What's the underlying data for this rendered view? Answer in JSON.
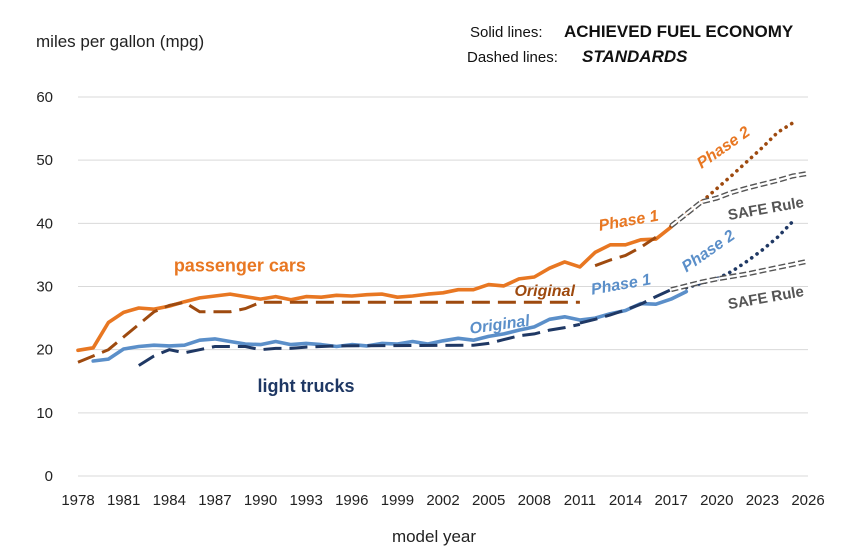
{
  "chart_data": {
    "type": "line",
    "ylabel": "miles per gallon (mpg)",
    "xlabel": "model year",
    "legend": {
      "solid_key": "Solid lines:",
      "solid_value": "ACHIEVED FUEL ECONOMY",
      "dashed_key": "Dashed lines:",
      "dashed_value": "STANDARDS"
    },
    "xlim": [
      1978,
      2026
    ],
    "ylim": [
      0,
      60
    ],
    "x_ticks": [
      1978,
      1981,
      1984,
      1987,
      1990,
      1993,
      1996,
      1999,
      2002,
      2005,
      2008,
      2011,
      2014,
      2017,
      2020,
      2023,
      2026
    ],
    "y_ticks": [
      0,
      10,
      20,
      30,
      40,
      50,
      60
    ],
    "grid": "horizontal",
    "colors": {
      "cars_achieved": "#E87722",
      "cars_standard": "#9E4A0F",
      "trucks_achieved": "#5B8FC9",
      "trucks_standard": "#1F3864",
      "safe_rule": "#555555",
      "grid": "#d9d9d9"
    },
    "series": [
      {
        "name": "passenger cars",
        "style": "solid",
        "color_key": "cars_achieved",
        "points": [
          [
            1978,
            19.9
          ],
          [
            1979,
            20.3
          ],
          [
            1980,
            24.3
          ],
          [
            1981,
            25.9
          ],
          [
            1982,
            26.6
          ],
          [
            1983,
            26.4
          ],
          [
            1984,
            26.9
          ],
          [
            1985,
            27.6
          ],
          [
            1986,
            28.2
          ],
          [
            1987,
            28.5
          ],
          [
            1988,
            28.8
          ],
          [
            1989,
            28.4
          ],
          [
            1990,
            28.0
          ],
          [
            1991,
            28.4
          ],
          [
            1992,
            27.9
          ],
          [
            1993,
            28.4
          ],
          [
            1994,
            28.3
          ],
          [
            1995,
            28.6
          ],
          [
            1996,
            28.5
          ],
          [
            1997,
            28.7
          ],
          [
            1998,
            28.8
          ],
          [
            1999,
            28.3
          ],
          [
            2000,
            28.5
          ],
          [
            2001,
            28.8
          ],
          [
            2002,
            29.0
          ],
          [
            2003,
            29.5
          ],
          [
            2004,
            29.5
          ],
          [
            2005,
            30.3
          ],
          [
            2006,
            30.1
          ],
          [
            2007,
            31.2
          ],
          [
            2008,
            31.5
          ],
          [
            2009,
            32.9
          ],
          [
            2010,
            33.9
          ],
          [
            2011,
            33.1
          ],
          [
            2012,
            35.4
          ],
          [
            2013,
            36.6
          ],
          [
            2014,
            36.6
          ],
          [
            2015,
            37.4
          ],
          [
            2016,
            37.5
          ],
          [
            2017,
            39.4
          ]
        ]
      },
      {
        "name": "light trucks",
        "style": "solid",
        "color_key": "trucks_achieved",
        "points": [
          [
            1979,
            18.2
          ],
          [
            1980,
            18.5
          ],
          [
            1981,
            20.1
          ],
          [
            1982,
            20.5
          ],
          [
            1983,
            20.7
          ],
          [
            1984,
            20.6
          ],
          [
            1985,
            20.7
          ],
          [
            1986,
            21.5
          ],
          [
            1987,
            21.7
          ],
          [
            1988,
            21.3
          ],
          [
            1989,
            20.9
          ],
          [
            1990,
            20.8
          ],
          [
            1991,
            21.3
          ],
          [
            1992,
            20.8
          ],
          [
            1993,
            21.0
          ],
          [
            1994,
            20.8
          ],
          [
            1995,
            20.5
          ],
          [
            1996,
            20.8
          ],
          [
            1997,
            20.6
          ],
          [
            1998,
            21.0
          ],
          [
            1999,
            20.9
          ],
          [
            2000,
            21.3
          ],
          [
            2001,
            20.9
          ],
          [
            2002,
            21.4
          ],
          [
            2003,
            21.8
          ],
          [
            2004,
            21.5
          ],
          [
            2005,
            22.1
          ],
          [
            2006,
            22.5
          ],
          [
            2007,
            23.1
          ],
          [
            2008,
            23.6
          ],
          [
            2009,
            24.8
          ],
          [
            2010,
            25.2
          ],
          [
            2011,
            24.7
          ],
          [
            2012,
            25.0
          ],
          [
            2013,
            25.7
          ],
          [
            2014,
            26.2
          ],
          [
            2015,
            27.3
          ],
          [
            2016,
            27.2
          ],
          [
            2017,
            28.0
          ],
          [
            2018,
            29.2
          ]
        ]
      },
      {
        "name": "cars original standard",
        "style": "dashed",
        "color_key": "cars_standard",
        "points": [
          [
            1978,
            18.0
          ],
          [
            1979,
            19.0
          ],
          [
            1980,
            20.0
          ],
          [
            1981,
            22.0
          ],
          [
            1982,
            24.0
          ],
          [
            1983,
            26.0
          ],
          [
            1984,
            27.0
          ],
          [
            1985,
            27.5
          ],
          [
            1986,
            26.0
          ],
          [
            1987,
            26.0
          ],
          [
            1988,
            26.0
          ],
          [
            1989,
            26.5
          ],
          [
            1990,
            27.5
          ],
          [
            2010,
            27.5
          ],
          [
            2011,
            27.5
          ]
        ]
      },
      {
        "name": "cars phase 1 standard",
        "style": "dashed",
        "color_key": "cars_standard",
        "points": [
          [
            2012,
            33.3
          ],
          [
            2013,
            34.2
          ],
          [
            2014,
            34.9
          ],
          [
            2015,
            36.2
          ],
          [
            2016,
            37.8
          ]
        ]
      },
      {
        "name": "cars phase 2 standard",
        "style": "dotted",
        "color_key": "cars_standard",
        "points": [
          [
            2017,
            39.6
          ],
          [
            2018,
            41.5
          ],
          [
            2019,
            43.4
          ],
          [
            2020,
            45.5
          ],
          [
            2021,
            47.6
          ],
          [
            2022,
            49.8
          ],
          [
            2023,
            52.0
          ],
          [
            2024,
            54.4
          ],
          [
            2025,
            55.9
          ]
        ]
      },
      {
        "name": "cars SAFE Rule",
        "style": "hollow",
        "color_key": "safe_rule",
        "points": [
          [
            2017,
            39.6
          ],
          [
            2018,
            41.5
          ],
          [
            2019,
            43.4
          ],
          [
            2020,
            44.0
          ],
          [
            2021,
            44.9
          ],
          [
            2022,
            45.6
          ],
          [
            2023,
            46.2
          ],
          [
            2024,
            46.8
          ],
          [
            2025,
            47.5
          ],
          [
            2026,
            47.9
          ]
        ]
      },
      {
        "name": "trucks original standard",
        "style": "dashed",
        "color_key": "trucks_standard",
        "points": [
          [
            1982,
            17.5
          ],
          [
            1983,
            19.0
          ],
          [
            1984,
            20.0
          ],
          [
            1985,
            19.5
          ],
          [
            1986,
            20.0
          ],
          [
            1987,
            20.5
          ],
          [
            1989,
            20.5
          ],
          [
            1990,
            20.0
          ],
          [
            1991,
            20.2
          ],
          [
            1992,
            20.2
          ],
          [
            1993,
            20.4
          ],
          [
            1994,
            20.5
          ],
          [
            1995,
            20.6
          ],
          [
            2004,
            20.7
          ],
          [
            2005,
            21.0
          ],
          [
            2006,
            21.6
          ],
          [
            2007,
            22.2
          ],
          [
            2008,
            22.5
          ],
          [
            2009,
            23.1
          ],
          [
            2010,
            23.5
          ],
          [
            2011,
            24.0
          ]
        ]
      },
      {
        "name": "trucks phase 1 standard",
        "style": "dashed",
        "color_key": "trucks_standard",
        "points": [
          [
            2011,
            24.2
          ],
          [
            2012,
            24.8
          ],
          [
            2013,
            25.5
          ],
          [
            2014,
            26.3
          ],
          [
            2015,
            27.2
          ],
          [
            2016,
            28.4
          ],
          [
            2017,
            29.5
          ]
        ]
      },
      {
        "name": "trucks phase 2 standard",
        "style": "dotted",
        "color_key": "trucks_standard",
        "points": [
          [
            2018,
            29.8
          ],
          [
            2019,
            30.5
          ],
          [
            2020,
            31.2
          ],
          [
            2021,
            32.4
          ],
          [
            2022,
            34.0
          ],
          [
            2023,
            35.8
          ],
          [
            2024,
            37.8
          ],
          [
            2025,
            40.3
          ]
        ]
      },
      {
        "name": "trucks SAFE Rule",
        "style": "hollow",
        "color_key": "safe_rule",
        "points": [
          [
            2017,
            29.5
          ],
          [
            2018,
            30.1
          ],
          [
            2019,
            30.7
          ],
          [
            2020,
            31.2
          ],
          [
            2021,
            31.6
          ],
          [
            2022,
            32.0
          ],
          [
            2023,
            32.5
          ],
          [
            2024,
            33.0
          ],
          [
            2025,
            33.5
          ],
          [
            2026,
            34.0
          ]
        ]
      }
    ],
    "annotations": [
      {
        "text": "passenger cars",
        "x": 1984.3,
        "y": 32.4,
        "color_key": "cars_achieved",
        "size": 18,
        "italic": false,
        "rotate": 0
      },
      {
        "text": "light trucks",
        "x": 1989.8,
        "y": 13.3,
        "color_key": "trucks_standard",
        "size": 18,
        "italic": false,
        "rotate": 0
      },
      {
        "text": "Original",
        "x": 2006.7,
        "y": 28.5,
        "color_key": "cars_standard",
        "size": 16,
        "italic": true,
        "rotate": 0
      },
      {
        "text": "Phase 1",
        "x": 2012.3,
        "y": 38.8,
        "color_key": "cars_achieved",
        "size": 16,
        "italic": true,
        "rotate": -10
      },
      {
        "text": "Phase 2",
        "x": 2019.0,
        "y": 48.6,
        "color_key": "cars_achieved",
        "size": 16,
        "italic": true,
        "rotate": -35
      },
      {
        "text": "SAFE Rule",
        "x": 2020.8,
        "y": 40.5,
        "color_key": "safe_rule",
        "size": 15,
        "italic": false,
        "rotate": -10
      },
      {
        "text": "Original",
        "x": 2003.8,
        "y": 22.5,
        "color_key": "trucks_achieved",
        "size": 16,
        "italic": true,
        "rotate": -8
      },
      {
        "text": "Phase 1",
        "x": 2011.8,
        "y": 28.7,
        "color_key": "trucks_achieved",
        "size": 16,
        "italic": true,
        "rotate": -10
      },
      {
        "text": "Phase 2",
        "x": 2018.0,
        "y": 32.2,
        "color_key": "trucks_achieved",
        "size": 16,
        "italic": true,
        "rotate": -35
      },
      {
        "text": "SAFE Rule",
        "x": 2020.8,
        "y": 26.4,
        "color_key": "safe_rule",
        "size": 15,
        "italic": false,
        "rotate": -10
      }
    ]
  }
}
